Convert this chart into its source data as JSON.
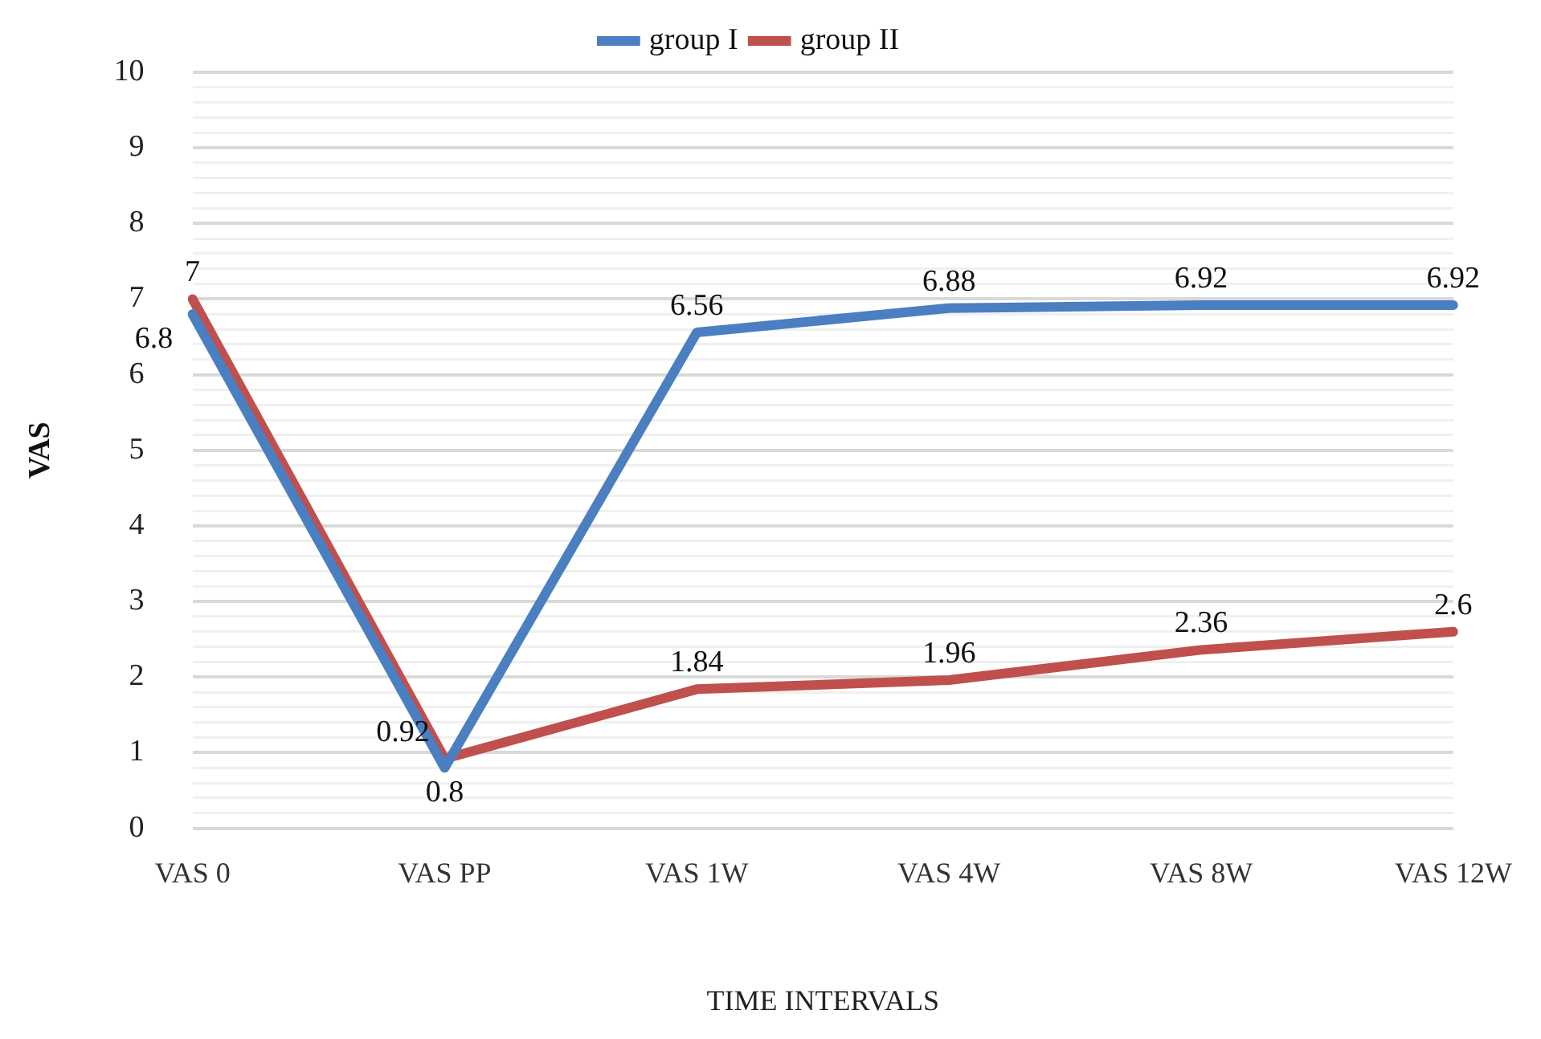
{
  "chart_data": {
    "type": "line",
    "xlabel": "TIME INTERVALS",
    "ylabel": "VAS",
    "categories": [
      "VAS 0",
      "VAS PP",
      "VAS 1W",
      "VAS 4W",
      "VAS 8W",
      "VAS 12W"
    ],
    "series": [
      {
        "name": "group I",
        "color": "#4a7fc1",
        "values": [
          6.8,
          0.8,
          6.56,
          6.88,
          6.92,
          6.92
        ]
      },
      {
        "name": "group II",
        "color": "#c0504d",
        "values": [
          7,
          0.92,
          1.84,
          1.96,
          2.36,
          2.6
        ]
      }
    ],
    "ylim": [
      0,
      10
    ],
    "yticks": [
      0,
      {
        "value": 0.2,
        "label": null
      },
      {
        "value": 0.4,
        "label": null
      },
      {
        "value": 0.6,
        "label": null
      },
      {
        "value": 0.8,
        "label": null
      },
      1,
      {
        "value": 1.2,
        "label": null
      },
      {
        "value": 1.4,
        "label": null
      },
      {
        "value": 1.6,
        "label": null
      },
      {
        "value": 1.8,
        "label": null
      },
      2,
      {
        "value": 2.2,
        "label": null
      },
      {
        "value": 2.4,
        "label": null
      },
      {
        "value": 2.6,
        "label": null
      },
      {
        "value": 2.8,
        "label": null
      },
      3,
      {
        "value": 3.2,
        "label": null
      },
      {
        "value": 3.4,
        "label": null
      },
      {
        "value": 3.6,
        "label": null
      },
      {
        "value": 3.8,
        "label": null
      },
      4,
      {
        "value": 4.2,
        "label": null
      },
      {
        "value": 4.4,
        "label": null
      },
      {
        "value": 4.6,
        "label": null
      },
      {
        "value": 4.8,
        "label": null
      },
      5,
      {
        "value": 5.2,
        "label": null
      },
      {
        "value": 5.4,
        "label": null
      },
      {
        "value": 5.6,
        "label": null
      },
      {
        "value": 5.8,
        "label": null
      },
      6,
      {
        "value": 6.2,
        "label": null
      },
      {
        "value": 6.4,
        "label": null
      },
      {
        "value": 6.6,
        "label": null
      },
      {
        "value": 6.8,
        "label": null
      },
      7,
      {
        "value": 7.2,
        "label": null
      },
      {
        "value": 7.4,
        "label": null
      },
      {
        "value": 7.6,
        "label": null
      },
      {
        "value": 7.8,
        "label": null
      },
      8,
      {
        "value": 8.2,
        "label": null
      },
      {
        "value": 8.4,
        "label": null
      },
      {
        "value": 8.6,
        "label": null
      },
      {
        "value": 8.8,
        "label": null
      },
      9,
      {
        "value": 9.2,
        "label": null
      },
      {
        "value": 9.4,
        "label": null
      },
      {
        "value": 9.6,
        "label": null
      },
      {
        "value": 9.8,
        "label": null
      },
      10
    ],
    "grid": "y",
    "legend": "top",
    "marker": "none",
    "line_style": "solid",
    "data_labels": true
  }
}
